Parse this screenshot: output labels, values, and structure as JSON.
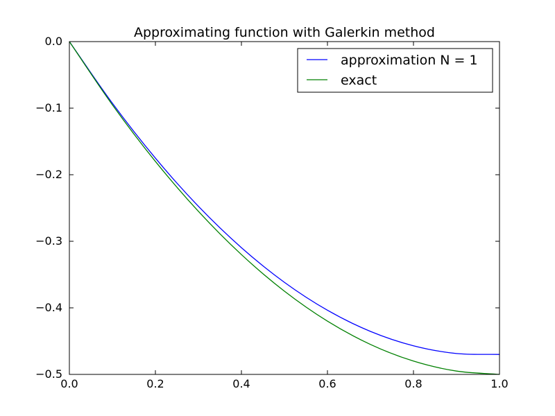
{
  "chart_data": {
    "type": "line",
    "title": "Approximating function with Galerkin method",
    "xlabel": "",
    "ylabel": "",
    "xlim": [
      0.0,
      1.0
    ],
    "ylim": [
      -0.5,
      0.0
    ],
    "xticks": [
      0.0,
      0.2,
      0.4,
      0.6,
      0.8,
      1.0
    ],
    "xtick_labels": [
      "0.0",
      "0.2",
      "0.4",
      "0.6",
      "0.8",
      "1.0"
    ],
    "yticks": [
      0.0,
      -0.1,
      -0.2,
      -0.3,
      -0.4,
      -0.5
    ],
    "ytick_labels": [
      "0.0",
      "−0.1",
      "−0.2",
      "−0.3",
      "−0.4",
      "−0.5"
    ],
    "grid": false,
    "legend_position": "top-right",
    "x": [
      0.0,
      0.1,
      0.2,
      0.3,
      0.4,
      0.5,
      0.6,
      0.7,
      0.8,
      0.9,
      1.0
    ],
    "series": [
      {
        "name": "approximation N = 1",
        "color": "#0000ff",
        "values": [
          0.0,
          -0.0926,
          -0.1751,
          -0.2475,
          -0.3096,
          -0.3617,
          -0.4036,
          -0.4354,
          -0.457,
          -0.4686,
          -0.47
        ]
      },
      {
        "name": "exact",
        "color": "#008000",
        "values": [
          0.0,
          -0.095,
          -0.18,
          -0.255,
          -0.32,
          -0.375,
          -0.42,
          -0.455,
          -0.48,
          -0.495,
          -0.5
        ]
      }
    ]
  }
}
